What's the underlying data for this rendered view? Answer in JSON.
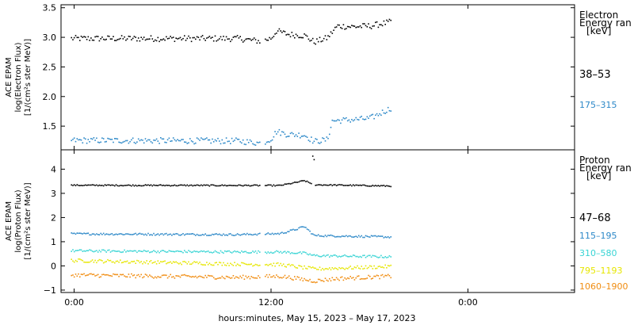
{
  "chart_data": [
    {
      "type": "scatter",
      "ylabel": [
        "ACE EPAM",
        "log(Electron Flux)",
        "[1/(cm²s ster MeV)]"
      ],
      "ylim": [
        1.1,
        3.55
      ],
      "yticks": [
        "1.5",
        "2.0",
        "2.5",
        "3.0",
        "3.5"
      ],
      "legend_title": [
        "Electron",
        "Energy  ran",
        "[keV]"
      ],
      "series": [
        {
          "name": "38–53",
          "color": "#000000",
          "profile": [
            [
              -0.2,
              2.99
            ],
            [
              10,
              2.99
            ],
            [
              11.4,
              2.94
            ],
            [
              12,
              3.0
            ],
            [
              12.3,
              3.12
            ],
            [
              13,
              3.06
            ],
            [
              14,
              3.04
            ],
            [
              14.6,
              2.93
            ],
            [
              15.4,
              3.0
            ],
            [
              16,
              3.2
            ],
            [
              17,
              3.19
            ],
            [
              18,
              3.2
            ],
            [
              19.3,
              3.27
            ]
          ],
          "noise": 0.05
        },
        {
          "name": "175–315",
          "color": "#2c88c8",
          "profile": [
            [
              -0.2,
              1.27
            ],
            [
              10,
              1.26
            ],
            [
              11.4,
              1.22
            ],
            [
              12,
              1.3
            ],
            [
              12.3,
              1.42
            ],
            [
              13,
              1.37
            ],
            [
              14,
              1.36
            ],
            [
              14.6,
              1.25
            ],
            [
              15.4,
              1.28
            ],
            [
              15.7,
              1.6
            ],
            [
              17,
              1.62
            ],
            [
              18,
              1.64
            ],
            [
              19.3,
              1.82
            ]
          ],
          "noise": 0.05
        }
      ]
    },
    {
      "type": "scatter",
      "ylabel": [
        "ACE EPAM",
        "log(Proton Flux)",
        "[1/(cm²s ster MeV)]"
      ],
      "ylim": [
        -1.1,
        4.8
      ],
      "yticks": [
        "−1",
        "0",
        "1",
        "2",
        "3",
        "4"
      ],
      "legend_title": [
        "Proton",
        "Energy  ran",
        "[keV]"
      ],
      "series": [
        {
          "name": "47–68",
          "color": "#000000",
          "profile": [
            [
              -0.2,
              3.36
            ],
            [
              12.5,
              3.35
            ],
            [
              13.3,
              3.45
            ],
            [
              14,
              3.55
            ],
            [
              14.6,
              3.38
            ],
            [
              19.3,
              3.33
            ]
          ],
          "noise": 0.025
        },
        {
          "name": "115–195",
          "color": "#2c88c8",
          "profile": [
            [
              -0.2,
              1.35
            ],
            [
              10,
              1.32
            ],
            [
              12.5,
              1.36
            ],
            [
              13.3,
              1.5
            ],
            [
              14,
              1.65
            ],
            [
              14.6,
              1.28
            ],
            [
              19.3,
              1.22
            ]
          ],
          "noise": 0.04
        },
        {
          "name": "310–580",
          "color": "#38d4d4",
          "profile": [
            [
              -0.2,
              0.65
            ],
            [
              10,
              0.6
            ],
            [
              12.5,
              0.6
            ],
            [
              14,
              0.55
            ],
            [
              14.6,
              0.45
            ],
            [
              19.3,
              0.4
            ]
          ],
          "noise": 0.05
        },
        {
          "name": "795–1193",
          "color": "#e6e600",
          "profile": [
            [
              -0.2,
              0.25
            ],
            [
              10,
              0.1
            ],
            [
              12.5,
              0.08
            ],
            [
              14.6,
              -0.1
            ],
            [
              19.3,
              0.0
            ]
          ],
          "noise": 0.07
        },
        {
          "name": "1060–1900",
          "color": "#f08c10",
          "profile": [
            [
              -0.2,
              -0.35
            ],
            [
              10,
              -0.45
            ],
            [
              12.5,
              -0.4
            ],
            [
              14.6,
              -0.6
            ],
            [
              16,
              -0.5
            ],
            [
              19.3,
              -0.4
            ]
          ],
          "noise": 0.08
        }
      ]
    }
  ],
  "x_axis": {
    "xlim": [
      -0.8,
      30.5
    ],
    "ticks": [
      0,
      12,
      24
    ],
    "tick_labels": [
      "0:00",
      "12:00",
      "0:00"
    ],
    "xlabel": "hours:minutes, May 15, 2023 – May 17, 2023"
  }
}
